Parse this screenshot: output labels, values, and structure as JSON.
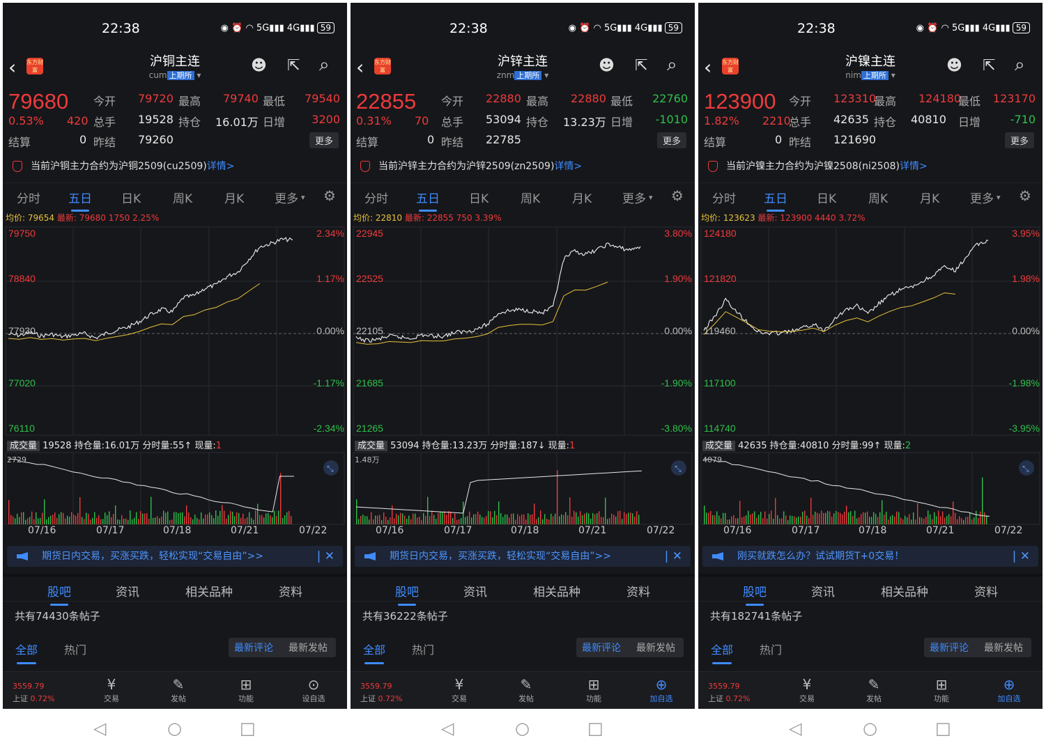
{
  "status": {
    "time": "22:38",
    "battery": "59"
  },
  "common": {
    "labels": {
      "open": "今开",
      "high": "最高",
      "low": "最低",
      "vol": "总手",
      "oi": "持仓",
      "dayinc": "日增",
      "settle": "结算",
      "prev": "昨结",
      "more_btn": "更多",
      "avg": "均价:",
      "latest": "最新:",
      "detail": "详情>"
    },
    "tabs": [
      "分时",
      "五日",
      "日K",
      "周K",
      "月K",
      "更多"
    ],
    "vol_tag": "成交量",
    "oi_label": "持仓量:",
    "tick_label": "分时量:",
    "now_label": "现量:",
    "dates": [
      "07/16",
      "07/17",
      "07/18",
      "07/21",
      "07/22"
    ],
    "content_tabs": [
      "股吧",
      "资讯",
      "相关品种",
      "资料"
    ],
    "filters": {
      "all": "全部",
      "hot": "热门",
      "latest_comment": "最新评论",
      "latest_post": "最新发帖"
    },
    "nav": {
      "index_price": "3559.79",
      "index_name": "上证",
      "index_pct": "0.72%",
      "trade": "交易",
      "post": "发帖",
      "func": "功能"
    },
    "logo_text": "东方财富",
    "colors": {
      "up": "#ee3b3b",
      "down": "#2ec14a",
      "accent": "#3f8cff"
    }
  },
  "screens": [
    {
      "title": "沪铜主连",
      "code": "cum",
      "exchange": "上期所",
      "price": "79680",
      "pct": "0.53%",
      "change": "420",
      "open": "79720",
      "high": "79740",
      "low": "79540",
      "vol": "19528",
      "oi": "16.01万",
      "dayinc": "3200",
      "dayinc_color": "red",
      "settle": "0",
      "prev": "79260",
      "notice": "当前沪铜主力合约为沪铜2509(cu2509)",
      "avg": "79654",
      "latest": "79680  1750  2.25%",
      "y_left": [
        "79750",
        "78840",
        "77930",
        "77020",
        "76110"
      ],
      "y_right": [
        "2.34%",
        "1.17%",
        "0.00%",
        "-1.17%",
        "-2.34%"
      ],
      "vol_value": "19528",
      "oi_value": "16.01万",
      "tick_value": "55↑",
      "now_value": "1",
      "vol_max": "2729",
      "banner": "期货日内交易，买涨买跌，轻松实现“交易自由”>>",
      "post_count": "共有74430条帖子",
      "nav_last": "设自选",
      "nav_last_blue": false,
      "chart_data": {
        "type": "line",
        "series": [
          {
            "values": [
              77910,
              77890,
              77940,
              77880,
              77910,
              77860,
              77900,
              77920,
              77840,
              77930,
              77990,
              78050,
              78150,
              78280,
              78380,
              78330,
              78600,
              78640,
              78780,
              78840,
              79000,
              79090,
              79330,
              79560,
              79620,
              79700,
              79690
            ]
          }
        ]
      }
    },
    {
      "title": "沪锌主连",
      "code": "znm",
      "exchange": "上期所",
      "price": "22855",
      "pct": "0.31%",
      "change": "70",
      "open": "22880",
      "high": "22880",
      "low": "22760",
      "vol": "53094",
      "oi": "13.23万",
      "dayinc": "-1010",
      "dayinc_color": "green",
      "settle": "0",
      "prev": "22785",
      "notice": "当前沪锌主力合约为沪锌2509(zn2509)",
      "avg": "22810",
      "latest": "22855  750  3.39%",
      "y_left": [
        "22945",
        "22525",
        "22105",
        "21685",
        "21265"
      ],
      "y_right": [
        "3.80%",
        "1.90%",
        "0.00%",
        "-1.90%",
        "-3.80%"
      ],
      "vol_value": "53094",
      "oi_value": "13.23万",
      "tick_value": "187↓",
      "now_value": "1",
      "vol_max": "1.48万",
      "banner": "期货日内交易，买涨买跌，轻松实现“交易自由”>>",
      "post_count": "共有36222条帖子",
      "nav_last": "加自选",
      "nav_last_blue": true,
      "chart_data": {
        "type": "line",
        "series": [
          {
            "values": [
              22060,
              22040,
              22050,
              22080,
              22070,
              22060,
              22090,
              22080,
              22080,
              22110,
              22120,
              22140,
              22180,
              22280,
              22300,
              22310,
              22300,
              22280,
              22330,
              22750,
              22820,
              22790,
              22830,
              22880,
              22850,
              22830,
              22860
            ]
          }
        ]
      }
    },
    {
      "title": "沪镍主连",
      "code": "nim",
      "exchange": "上期所",
      "price": "123900",
      "pct": "1.82%",
      "change": "2210",
      "open": "123310",
      "high": "124180",
      "low": "123170",
      "vol": "42635",
      "oi": "40810",
      "dayinc": "-710",
      "dayinc_color": "green",
      "settle": "0",
      "prev": "121690",
      "notice": "当前沪镍主力合约为沪镍2508(ni2508)",
      "avg": "123623",
      "latest": "123900  4440  3.72%",
      "y_left": [
        "124180",
        "121820",
        "119460",
        "117100",
        "114740"
      ],
      "y_right": [
        "3.95%",
        "1.98%",
        "0.00%",
        "-1.98%",
        "-3.95%"
      ],
      "vol_value": "42635",
      "oi_value": "40810",
      "tick_value": "99↑",
      "now_value": "2",
      "vol_max": "4079",
      "banner": "刚买就跌怎么办？试试期货T+0交易！",
      "post_count": "共有182741条帖子",
      "nav_last": "加自选",
      "nav_last_blue": true,
      "chart_data": {
        "type": "line",
        "series": [
          {
            "values": [
              119600,
              120300,
              121100,
              120500,
              120000,
              119500,
              119450,
              119480,
              119550,
              119700,
              119900,
              119600,
              120200,
              120600,
              120800,
              120400,
              120900,
              121300,
              121600,
              121700,
              122000,
              122300,
              122700,
              122500,
              123200,
              123800,
              124000
            ]
          }
        ]
      }
    }
  ]
}
